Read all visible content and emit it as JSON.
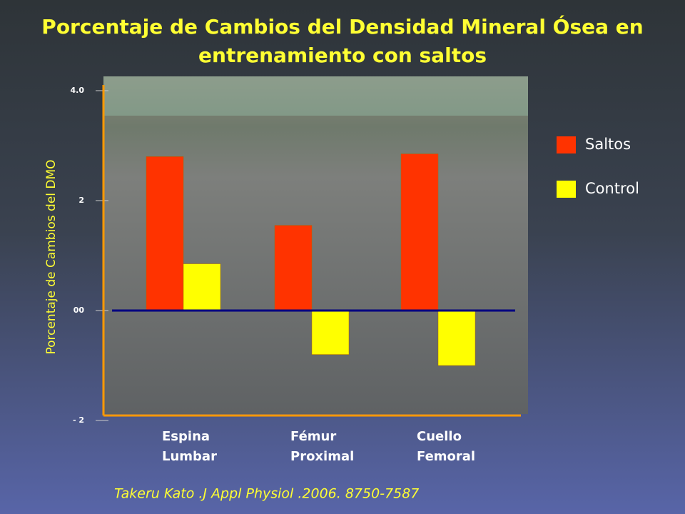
{
  "chart_data": {
    "type": "bar",
    "title": "Porcentaje de Cambios del Densidad Mineral Ósea en entrenamiento con saltos",
    "y_label": "Porcentaje de Cambios del DMO",
    "categories": [
      [
        "Espina",
        "Lumbar"
      ],
      [
        "Fémur",
        "Proximal"
      ],
      [
        "Cuello",
        "Femoral"
      ]
    ],
    "series": [
      {
        "name": "Saltos",
        "color": "#ff3300",
        "values": [
          2.8,
          1.55,
          2.85
        ]
      },
      {
        "name": "Control",
        "color": "#ffff00",
        "values": [
          0.85,
          -0.8,
          -1.0
        ]
      }
    ],
    "ylim": [
      -2,
      4
    ],
    "yticks": [
      {
        "value": 4,
        "label": "4.0"
      },
      2,
      {
        "value": 0,
        "label": "00"
      },
      {
        "value": -2,
        "label": "- 2"
      }
    ],
    "legend": "right",
    "source": "Takeru Kato .J Appl Physiol .2006. 8750-7587"
  }
}
